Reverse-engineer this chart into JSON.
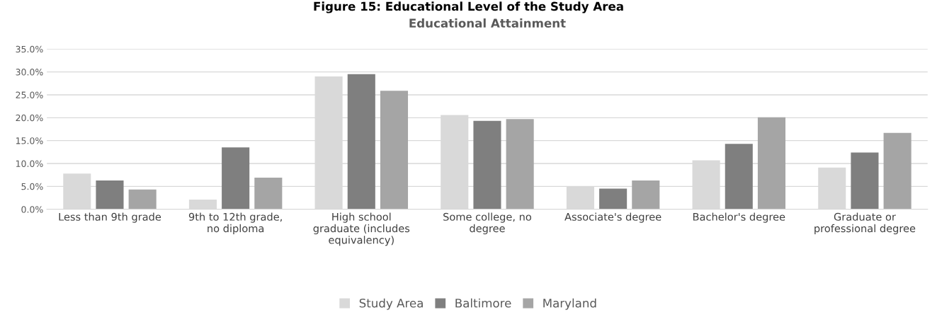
{
  "chart_data": {
    "type": "bar",
    "title": "Educational Attainment",
    "subtitle": "Figure 15: Educational Level of the Study Area",
    "categories": [
      "Less than 9th grade",
      "9th to 12th grade,\nno diploma",
      "High school\ngraduate (includes\nequivalency)",
      "Some college, no\ndegree",
      "Associate's degree",
      "Bachelor's degree",
      "Graduate or\nprofessional degree"
    ],
    "series": [
      {
        "name": "Study Area",
        "color": "#d9d9d9",
        "values": [
          7.8,
          2.1,
          29.0,
          20.6,
          5.0,
          10.7,
          9.1
        ]
      },
      {
        "name": "Baltimore",
        "color": "#7f7f7f",
        "values": [
          6.3,
          13.5,
          29.5,
          19.3,
          4.5,
          14.3,
          12.4
        ]
      },
      {
        "name": "Maryland",
        "color": "#a5a5a5",
        "values": [
          4.3,
          6.9,
          25.9,
          19.7,
          6.3,
          20.1,
          16.7
        ]
      }
    ],
    "ylim": [
      0,
      35
    ],
    "yticks": [
      {
        "value": 0,
        "label": "0.0%"
      },
      {
        "value": 5,
        "label": "5.0%"
      },
      {
        "value": 10,
        "label": "10.0%"
      },
      {
        "value": 15,
        "label": "15.0%"
      },
      {
        "value": 20,
        "label": "20.0%"
      },
      {
        "value": 25,
        "label": "25.0%"
      },
      {
        "value": 30,
        "label": "30.0%"
      },
      {
        "value": 35,
        "label": "35.0%"
      }
    ],
    "grid": "y",
    "legend": "bottom"
  }
}
